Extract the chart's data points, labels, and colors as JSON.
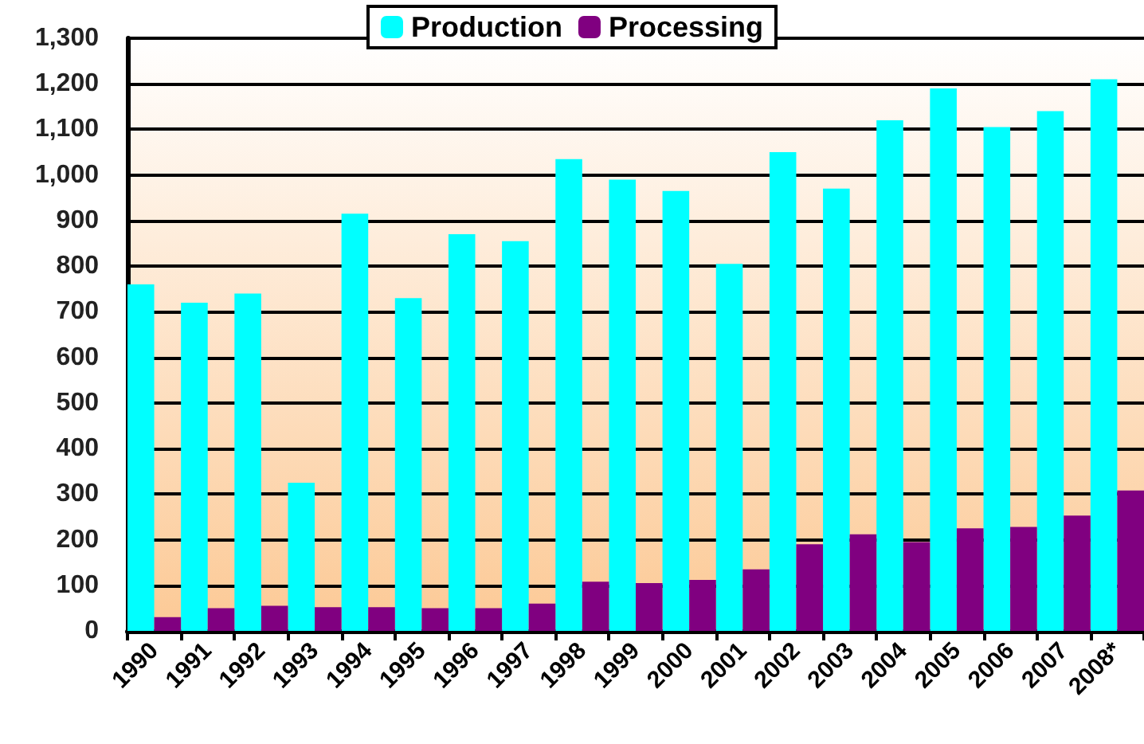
{
  "chart_data": {
    "type": "bar",
    "categories": [
      "1990",
      "1991",
      "1992",
      "1993",
      "1994",
      "1995",
      "1996",
      "1997",
      "1998",
      "1999",
      "2000",
      "2001",
      "2002",
      "2003",
      "2004",
      "2005",
      "2006",
      "2007",
      "2008*"
    ],
    "series": [
      {
        "name": "Production",
        "color": "#00ffff",
        "values": [
          760,
          720,
          740,
          325,
          915,
          730,
          870,
          855,
          1035,
          990,
          965,
          805,
          1050,
          970,
          1120,
          1190,
          1105,
          1140,
          1210
        ]
      },
      {
        "name": "Processing",
        "color": "#800080",
        "values": [
          30,
          50,
          55,
          52,
          52,
          50,
          50,
          60,
          108,
          105,
          112,
          135,
          190,
          212,
          195,
          225,
          228,
          253,
          308
        ]
      }
    ],
    "ylim": [
      0,
      1300
    ],
    "yticks": [
      {
        "value": 0,
        "label": "0"
      },
      {
        "value": 100,
        "label": "100"
      },
      {
        "value": 200,
        "label": "200"
      },
      {
        "value": 300,
        "label": "300"
      },
      {
        "value": 400,
        "label": "400"
      },
      {
        "value": 500,
        "label": "500"
      },
      {
        "value": 600,
        "label": "600"
      },
      {
        "value": 700,
        "label": "700"
      },
      {
        "value": 800,
        "label": "800"
      },
      {
        "value": 900,
        "label": "900"
      },
      {
        "value": 1000,
        "label": "1,000"
      },
      {
        "value": 1100,
        "label": "1,100"
      },
      {
        "value": 1200,
        "label": "1,200"
      },
      {
        "value": 1300,
        "label": "1,300"
      }
    ],
    "grid": "y",
    "legend": "top"
  }
}
